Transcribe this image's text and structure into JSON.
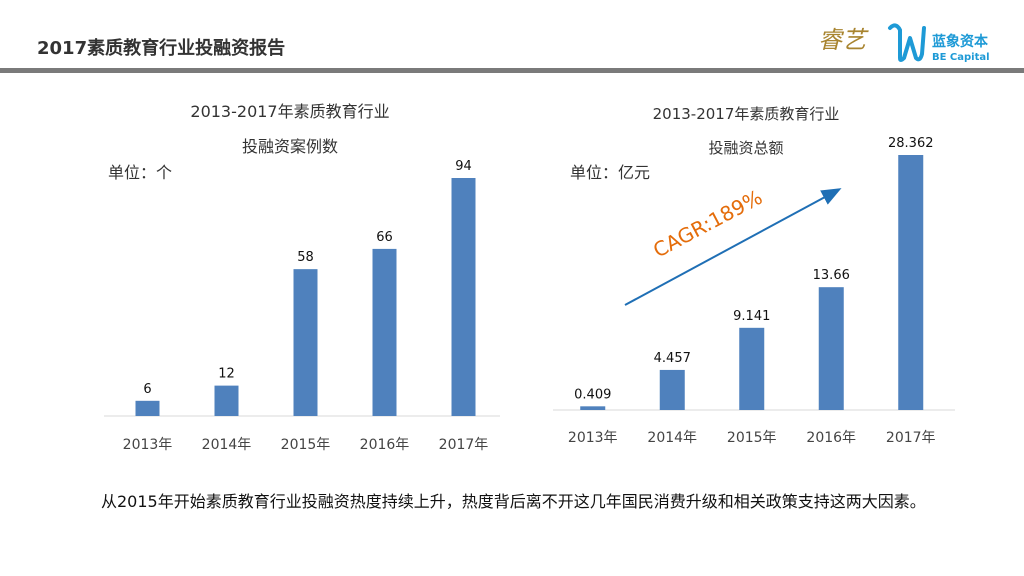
{
  "header": {
    "title": "2017素质教育行业投融资报告",
    "logo_left_text": "睿艺",
    "logo_right_name": "蓝象资本",
    "logo_right_sub": "BE Capital"
  },
  "colors": {
    "bar": "#4f81bd",
    "arrow": "#1f6fb5",
    "cagr": "#e46c0a",
    "header_bar": "#7a7a7a"
  },
  "chart_data": [
    {
      "type": "bar",
      "title_line1": "2013-2017年素质教育行业",
      "title_line2": "投融资案例数",
      "unit": "单位：个",
      "categories": [
        "2013年",
        "2014年",
        "2015年",
        "2016年",
        "2017年"
      ],
      "values": [
        6,
        12,
        58,
        66,
        94
      ],
      "labels": [
        "6",
        "12",
        "58",
        "66",
        "94"
      ],
      "ylim": [
        0,
        94
      ],
      "grid": false,
      "legend": "none"
    },
    {
      "type": "bar",
      "title_line1": "2013-2017年素质教育行业",
      "title_line2": "投融资总额",
      "unit": "单位：亿元",
      "categories": [
        "2013年",
        "2014年",
        "2015年",
        "2016年",
        "2017年"
      ],
      "values": [
        0.409,
        4.457,
        9.141,
        13.66,
        28.362
      ],
      "labels": [
        "0.409",
        "4.457",
        "9.141",
        "13.66",
        "28.362"
      ],
      "ylim": [
        0,
        28.362
      ],
      "grid": false,
      "legend": "none",
      "annotation": "CAGR:189%"
    }
  ],
  "footer": {
    "text": "从2015年开始素质教育行业投融资热度持续上升，热度背后离不开这几年国民消费升级和相关政策支持这两大因素。"
  }
}
